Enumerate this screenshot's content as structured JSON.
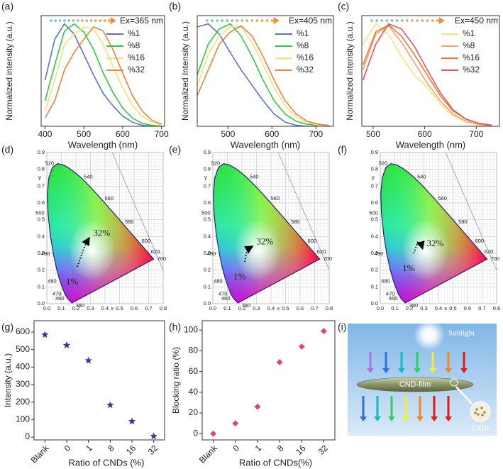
{
  "chart_data": [
    {
      "type": "line",
      "label": "(a)",
      "annotation": "Ex=365 nm",
      "xlabel": "Wavelength (nm)",
      "ylabel": "Normalized intensity (a.u.)",
      "x": [
        400,
        425,
        450,
        475,
        500,
        525,
        550,
        575,
        600,
        625,
        650,
        675,
        700
      ],
      "xlim": [
        390,
        708
      ],
      "xticks": [
        400,
        500,
        600,
        700
      ],
      "ylim": [
        0,
        1.08
      ],
      "series": [
        {
          "name": "%1",
          "color": "#6070c0",
          "values": [
            0.45,
            0.85,
            1.0,
            0.9,
            0.7,
            0.5,
            0.32,
            0.2,
            0.1,
            0.04,
            0.01,
            0,
            0
          ]
        },
        {
          "name": "%8",
          "color": "#2ccc3c",
          "values": [
            0.25,
            0.6,
            0.93,
            1.0,
            0.92,
            0.75,
            0.52,
            0.33,
            0.18,
            0.08,
            0.03,
            0.01,
            0
          ]
        },
        {
          "name": "%16",
          "color": "#f2e27a",
          "values": [
            0.15,
            0.45,
            0.8,
            0.9,
            0.97,
            0.95,
            0.8,
            0.58,
            0.38,
            0.2,
            0.1,
            0.04,
            0.01
          ]
        },
        {
          "name": "%32",
          "color": "#e8843c",
          "values": [
            0.08,
            0.25,
            0.55,
            0.72,
            0.85,
            0.97,
            0.93,
            0.75,
            0.52,
            0.3,
            0.15,
            0.06,
            0.02
          ]
        }
      ]
    },
    {
      "type": "line",
      "label": "(b)",
      "annotation": "Ex=405 nm",
      "xlabel": "Wavelength (nm)",
      "ylabel": "Normalized Intensity (a.u.)",
      "x": [
        430,
        455,
        480,
        505,
        530,
        555,
        580,
        605,
        630,
        655,
        680,
        705,
        730
      ],
      "xlim": [
        430,
        740
      ],
      "xticks": [
        500,
        600,
        700
      ],
      "ylim": [
        0,
        1.08
      ],
      "series": [
        {
          "name": "%1",
          "color": "#6070c0",
          "values": [
            0.97,
            1.0,
            0.9,
            0.72,
            0.55,
            0.4,
            0.25,
            0.12,
            0.04,
            0.01,
            0,
            0,
            0
          ]
        },
        {
          "name": "%8",
          "color": "#2ccc3c",
          "values": [
            0.5,
            0.8,
            0.95,
            1.0,
            0.88,
            0.68,
            0.45,
            0.25,
            0.12,
            0.05,
            0.02,
            0.01,
            0
          ]
        },
        {
          "name": "%16",
          "color": "#f2e27a",
          "values": [
            0.4,
            0.7,
            0.88,
            0.97,
            0.97,
            0.82,
            0.6,
            0.38,
            0.2,
            0.09,
            0.04,
            0.01,
            0
          ]
        },
        {
          "name": "%32",
          "color": "#e8843c",
          "values": [
            0.3,
            0.55,
            0.8,
            0.92,
            0.98,
            0.88,
            0.68,
            0.45,
            0.25,
            0.12,
            0.05,
            0.02,
            0.01
          ]
        }
      ]
    },
    {
      "type": "line",
      "label": "(c)",
      "annotation": "Ex=450 nm",
      "xlabel": "Wavelength (nm)",
      "ylabel": "Normalized intensity (a.u.)",
      "x": [
        480,
        505,
        530,
        555,
        580,
        605,
        630,
        655,
        680,
        705,
        730
      ],
      "xlim": [
        478,
        745
      ],
      "xticks": [
        500,
        600,
        700
      ],
      "ylim": [
        0,
        1.08
      ],
      "series": [
        {
          "name": "%1",
          "color": "#f4e47c",
          "values": [
            0.8,
            1.0,
            0.9,
            0.68,
            0.5,
            0.38,
            0.22,
            0.1,
            0.04,
            0.01,
            0
          ]
        },
        {
          "name": "%8",
          "color": "#f4a070",
          "values": [
            0.55,
            0.9,
            0.98,
            0.82,
            0.62,
            0.42,
            0.25,
            0.12,
            0.05,
            0.02,
            0
          ]
        },
        {
          "name": "%16",
          "color": "#ec7a2a",
          "values": [
            0.6,
            0.92,
            0.99,
            0.88,
            0.7,
            0.5,
            0.3,
            0.15,
            0.07,
            0.03,
            0.01
          ]
        },
        {
          "name": "%32",
          "color": "#e8505a",
          "values": [
            0.45,
            0.8,
            1.0,
            0.95,
            0.78,
            0.55,
            0.33,
            0.16,
            0.07,
            0.03,
            0.01
          ]
        }
      ]
    },
    {
      "type": "cie",
      "label": "(d)",
      "xlabel": "x",
      "ylabel": "y",
      "xlim": [
        0,
        0.8
      ],
      "ylim": [
        0,
        0.9
      ],
      "xticks": [
        {
          "value": 0,
          "label": "0.0"
        },
        {
          "value": 0.1,
          "label": "0.1"
        },
        {
          "value": 0.2,
          "label": "0.2"
        },
        {
          "value": 0.3,
          "label": "0.3"
        },
        {
          "value": 0.4,
          "label": "0.4"
        },
        {
          "value": 0.5,
          "label": "0.5"
        },
        {
          "value": 0.6,
          "label": "0.6"
        },
        {
          "value": 0.7,
          "label": "0.7"
        },
        {
          "value": 0.8,
          "label": "0.8"
        }
      ],
      "yticks": [
        {
          "value": 0,
          "label": "0.0"
        },
        {
          "value": 0.1,
          "label": "0.1"
        },
        {
          "value": 0.2,
          "label": "0.2"
        },
        {
          "value": 0.3,
          "label": "0.3"
        },
        {
          "value": 0.4,
          "label": "0.4"
        },
        {
          "value": 0.5,
          "label": "0.5"
        },
        {
          "value": 0.6,
          "label": "0.6"
        },
        {
          "value": 0.7,
          "label": "0.7"
        },
        {
          "value": 0.8,
          "label": "0.8"
        },
        {
          "value": 0.9,
          "label": "0.9"
        }
      ],
      "locus_labels": [
        380,
        460,
        470,
        480,
        490,
        500,
        520,
        540,
        560,
        580,
        600,
        620,
        700
      ],
      "series": [
        {
          "color": "#000000",
          "x": [
            0.21,
            0.23,
            0.25,
            0.27,
            0.29
          ],
          "values": [
            0.22,
            0.27,
            0.32,
            0.36,
            0.39
          ]
        }
      ],
      "annotations": [
        "1%",
        "32%"
      ]
    },
    {
      "type": "cie",
      "label": "(e)",
      "xlabel": "x",
      "ylabel": "y",
      "xlim": [
        0,
        0.8
      ],
      "ylim": [
        0,
        0.9
      ],
      "xticks": [
        {
          "value": 0,
          "label": "0.0"
        },
        {
          "value": 0.1,
          "label": "0.1"
        },
        {
          "value": 0.2,
          "label": "0.2"
        },
        {
          "value": 0.3,
          "label": "0.3"
        },
        {
          "value": 0.4,
          "label": "0.4"
        },
        {
          "value": 0.5,
          "label": "0.5"
        },
        {
          "value": 0.6,
          "label": "0.6"
        },
        {
          "value": 0.7,
          "label": "0.7"
        },
        {
          "value": 0.8,
          "label": "0.8"
        }
      ],
      "yticks": [
        {
          "value": 0,
          "label": "0.0"
        },
        {
          "value": 0.1,
          "label": "0.1"
        },
        {
          "value": 0.2,
          "label": "0.2"
        },
        {
          "value": 0.3,
          "label": "0.3"
        },
        {
          "value": 0.4,
          "label": "0.4"
        },
        {
          "value": 0.5,
          "label": "0.5"
        },
        {
          "value": 0.6,
          "label": "0.6"
        },
        {
          "value": 0.7,
          "label": "0.7"
        },
        {
          "value": 0.8,
          "label": "0.8"
        },
        {
          "value": 0.9,
          "label": "0.9"
        }
      ],
      "locus_labels": [
        380,
        460,
        470,
        480,
        490,
        500,
        520,
        540,
        560,
        580,
        600,
        620,
        700
      ],
      "series": [
        {
          "color": "#000000",
          "x": [
            0.22,
            0.23,
            0.25,
            0.27
          ],
          "values": [
            0.25,
            0.3,
            0.33,
            0.34
          ]
        }
      ],
      "annotations": [
        "1%",
        "32%"
      ]
    },
    {
      "type": "cie",
      "label": "(f)",
      "xlabel": "x",
      "ylabel": "y",
      "xlim": [
        0,
        0.8
      ],
      "ylim": [
        0,
        0.9
      ],
      "xticks": [
        {
          "value": 0,
          "label": "0.0"
        },
        {
          "value": 0.1,
          "label": "0.1"
        },
        {
          "value": 0.2,
          "label": "0.2"
        },
        {
          "value": 0.3,
          "label": "0.3"
        },
        {
          "value": 0.4,
          "label": "0.4"
        },
        {
          "value": 0.5,
          "label": "0.5"
        },
        {
          "value": 0.6,
          "label": "0.6"
        },
        {
          "value": 0.7,
          "label": "0.7"
        },
        {
          "value": 0.8,
          "label": "0.8"
        }
      ],
      "yticks": [
        {
          "value": 0,
          "label": "0.0"
        },
        {
          "value": 0.1,
          "label": "0.1"
        },
        {
          "value": 0.2,
          "label": "0.2"
        },
        {
          "value": 0.3,
          "label": "0.3"
        },
        {
          "value": 0.4,
          "label": "0.4"
        },
        {
          "value": 0.5,
          "label": "0.5"
        },
        {
          "value": 0.6,
          "label": "0.6"
        },
        {
          "value": 0.7,
          "label": "0.7"
        },
        {
          "value": 0.8,
          "label": "0.8"
        },
        {
          "value": 0.9,
          "label": "0.9"
        }
      ],
      "locus_labels": [
        380,
        460,
        470,
        480,
        490,
        500,
        520,
        540,
        560,
        580,
        600,
        620,
        700
      ],
      "series": [
        {
          "color": "#000000",
          "x": [
            0.23,
            0.26,
            0.28,
            0.29
          ],
          "values": [
            0.3,
            0.37,
            0.36,
            0.33
          ]
        }
      ],
      "annotations": [
        "1%",
        "32%"
      ]
    },
    {
      "type": "scatter",
      "label": "(g)",
      "marker": "star",
      "color": "#2a3c9c",
      "xlabel": "Ratio of CNDs (%)",
      "ylabel": "Intensity (a.u.)",
      "categories": [
        "Blank",
        "0",
        "1",
        "8",
        "16",
        "32"
      ],
      "values": [
        585,
        525,
        437,
        183,
        90,
        5
      ],
      "ylim": [
        -16,
        665
      ],
      "yticks": [
        0,
        100,
        200,
        300,
        400,
        500,
        600
      ]
    },
    {
      "type": "scatter",
      "label": "(h)",
      "marker": "diamond",
      "color": "#e0457a",
      "xlabel": "Ratio of CNDs(%)",
      "ylabel": "Blocking ratio (%)",
      "categories": [
        "Blank",
        "0",
        "1",
        "8",
        "16",
        "32"
      ],
      "values": [
        0,
        10,
        26,
        69,
        84,
        99
      ],
      "ylim": [
        -6,
        109
      ],
      "yticks": [
        0,
        20,
        40,
        60,
        80,
        100
      ]
    },
    {
      "type": "diagram",
      "label": "(i)",
      "sunlight": "Sunlight",
      "film": "CND-film",
      "dots": "CNDs"
    }
  ]
}
